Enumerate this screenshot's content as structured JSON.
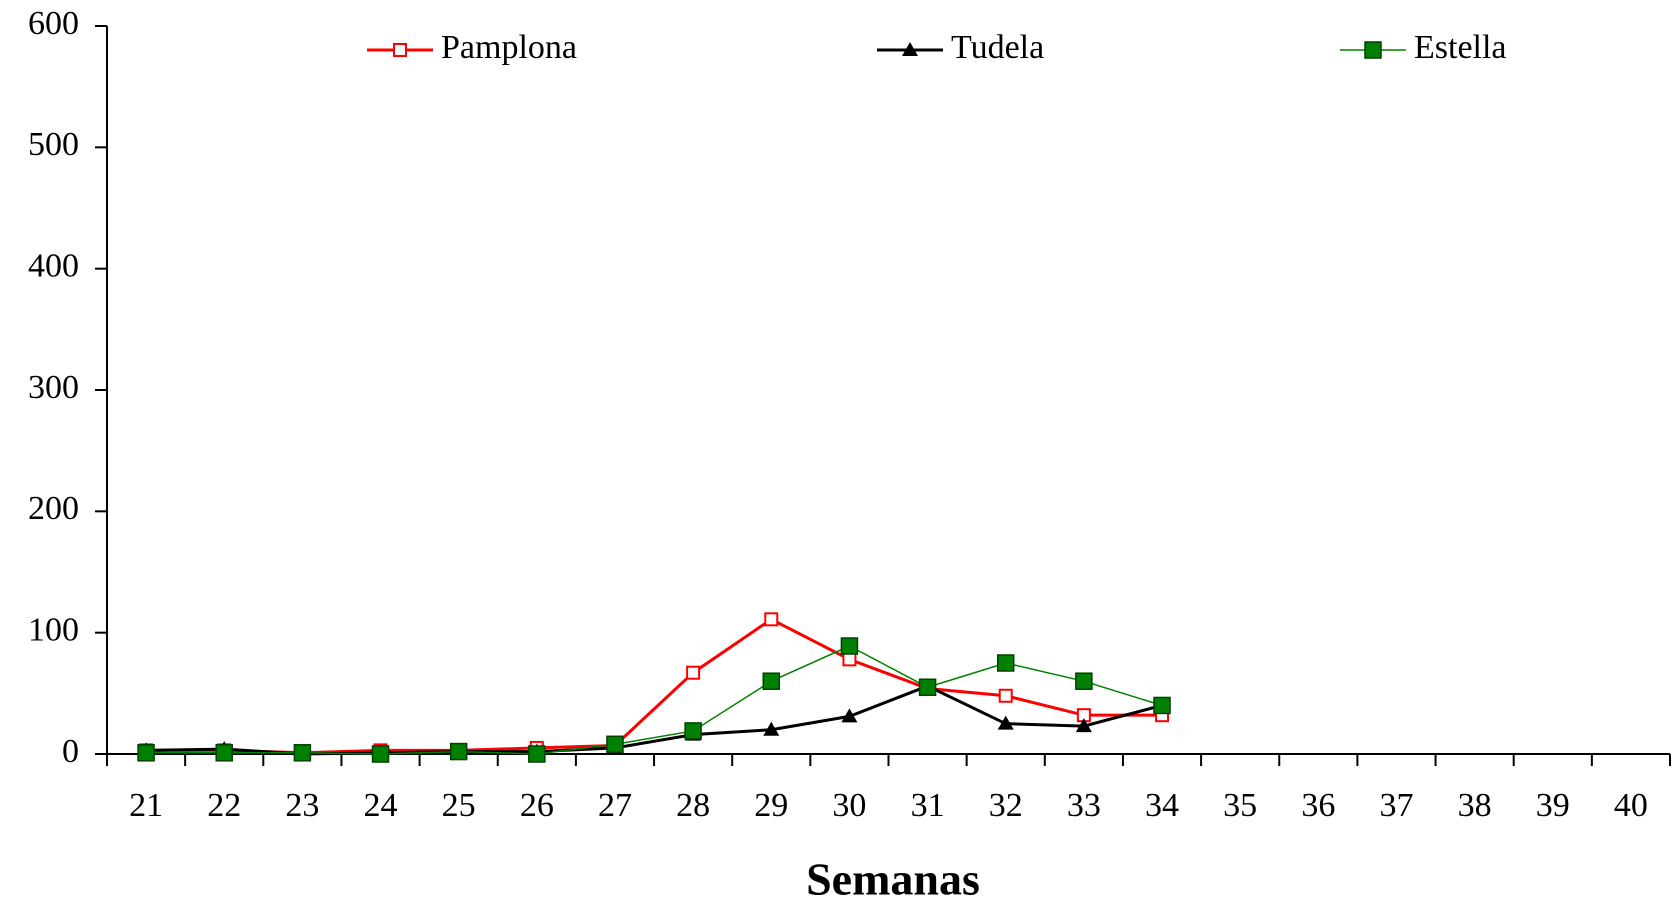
{
  "chart_data": {
    "type": "line",
    "xlabel": "Semanas",
    "categories": [
      "21",
      "22",
      "23",
      "24",
      "25",
      "26",
      "27",
      "28",
      "29",
      "30",
      "31",
      "32",
      "33",
      "34",
      "35",
      "36",
      "37",
      "38",
      "39",
      "40"
    ],
    "series": [
      {
        "name": "Pamplona",
        "color": "#ff0000",
        "marker": "square-open",
        "values": [
          3,
          3,
          1,
          3,
          3,
          5,
          7,
          67,
          111,
          78,
          54,
          48,
          32,
          32,
          null,
          null,
          null,
          null,
          null,
          null
        ]
      },
      {
        "name": "Tudela",
        "color": "#000000",
        "marker": "triangle",
        "values": [
          3,
          4,
          0,
          1,
          2,
          2,
          5,
          16,
          20,
          31,
          56,
          25,
          23,
          40,
          null,
          null,
          null,
          null,
          null,
          null
        ]
      },
      {
        "name": "Estella",
        "color": "#008000",
        "marker": "square-x",
        "values": [
          1,
          1,
          1,
          0,
          2,
          0,
          8,
          19,
          60,
          89,
          55,
          75,
          60,
          40,
          null,
          null,
          null,
          null,
          null,
          null
        ]
      }
    ],
    "ylim": [
      0,
      600
    ],
    "yticks": [
      0,
      100,
      200,
      300,
      400,
      500,
      600
    ],
    "grid": false,
    "legend": "top"
  }
}
